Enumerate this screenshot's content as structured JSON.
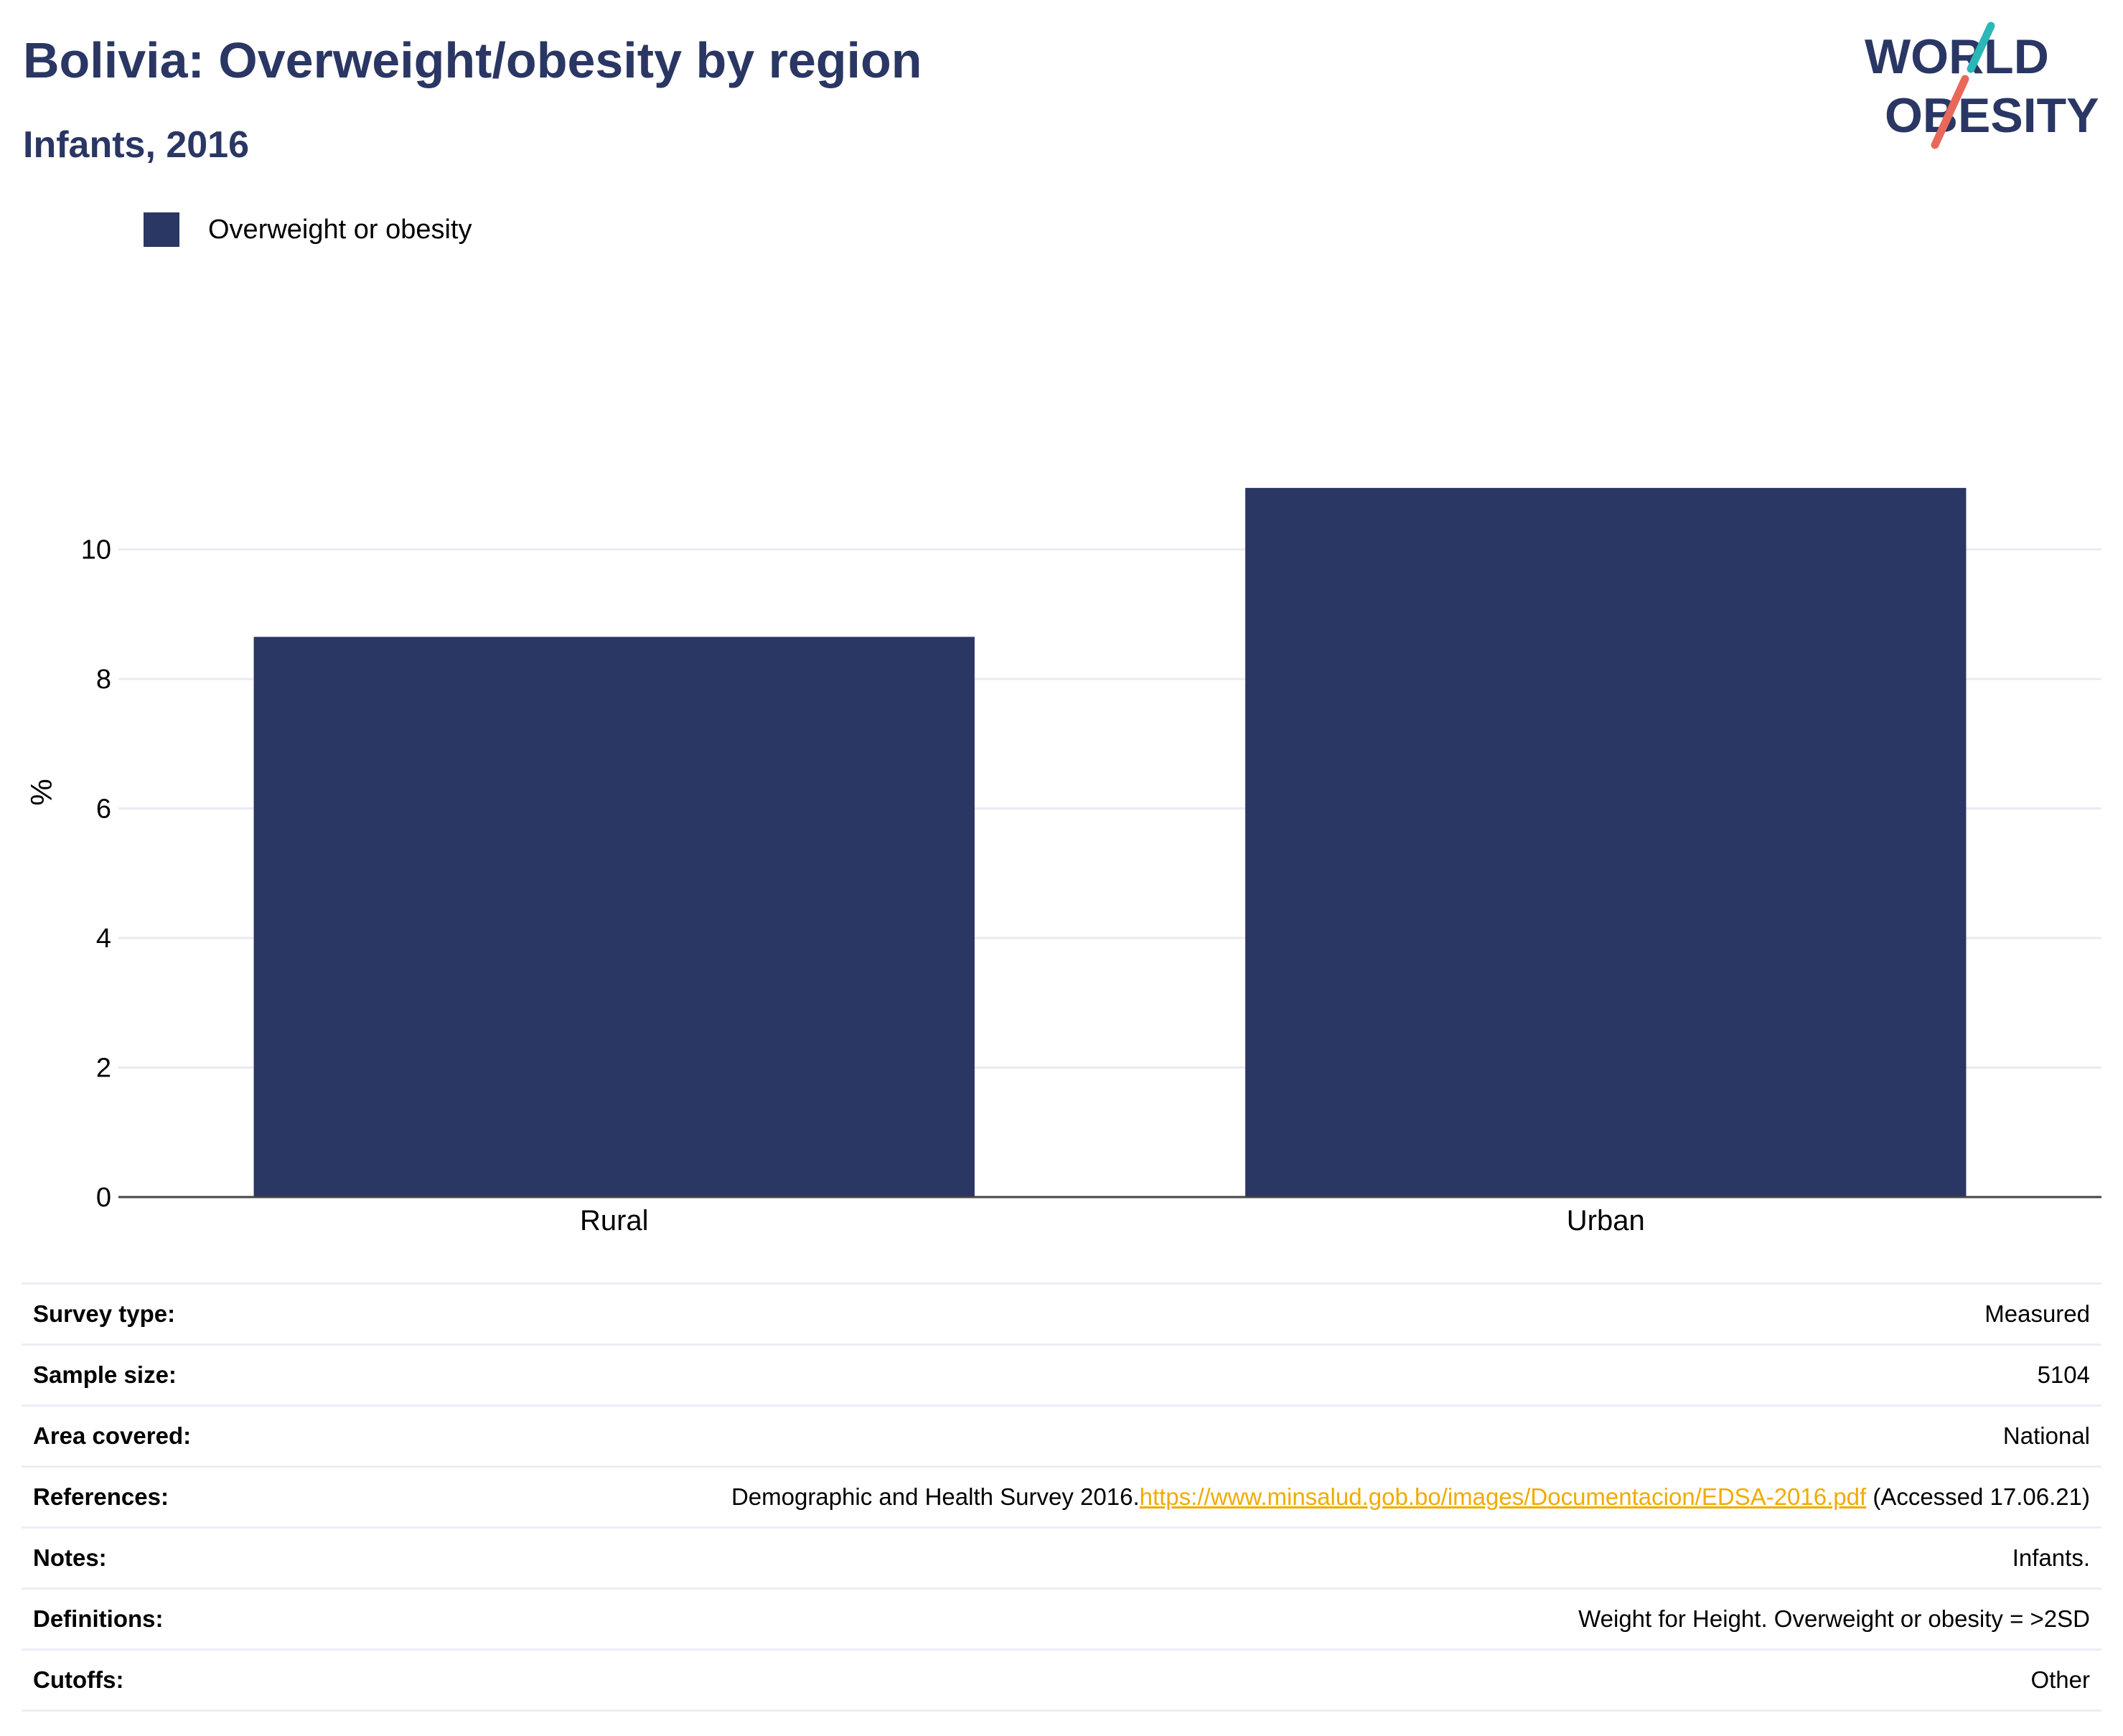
{
  "header": {
    "title": "Bolivia: Overweight/obesity by region",
    "subtitle": "Infants, 2016"
  },
  "logo": {
    "line1": "WORLD",
    "line2": "OBESITY",
    "accent_teal": "#2ab7b7",
    "accent_coral": "#e8685a"
  },
  "colors": {
    "bar": "#2a3663",
    "title": "#2a3663",
    "link": "#f0ab00"
  },
  "chart_data": {
    "type": "bar",
    "categories": [
      "Rural",
      "Urban"
    ],
    "series": [
      {
        "name": "Overweight or obesity",
        "values": [
          8.65,
          10.95
        ]
      }
    ],
    "ylabel": "%",
    "ylim": [
      0,
      12.5
    ],
    "yticks": [
      0,
      2,
      4,
      6,
      8,
      10
    ],
    "grid": true,
    "legend_position": "top-left"
  },
  "meta": {
    "rows": [
      {
        "key": "Survey type:",
        "value": "Measured"
      },
      {
        "key": "Sample size:",
        "value": "5104"
      },
      {
        "key": "Area covered:",
        "value": "National"
      },
      {
        "key": "References:",
        "value_prefix": "Demographic and Health Survey 2016.",
        "link": "https://www.minsalud.gob.bo/images/Documentacion/EDSA-2016.pdf",
        "value_suffix": " (Accessed 17.06.21)"
      },
      {
        "key": "Notes:",
        "value": "Infants."
      },
      {
        "key": "Definitions:",
        "value": "Weight for Height. Overweight or obesity = >2SD"
      },
      {
        "key": "Cutoffs:",
        "value": "Other"
      }
    ]
  }
}
